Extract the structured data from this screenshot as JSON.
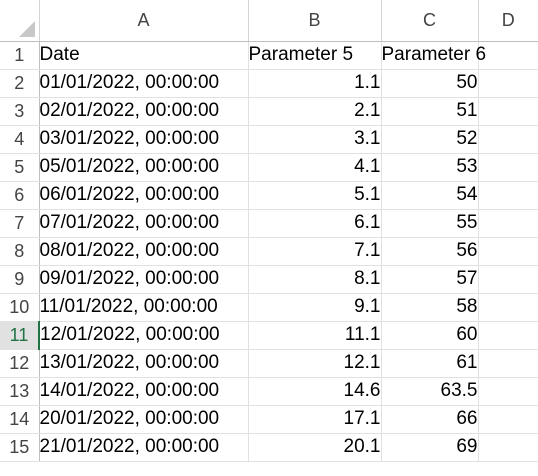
{
  "columns": [
    "A",
    "B",
    "C",
    "D"
  ],
  "header_row": {
    "row_number": "1",
    "cells": [
      "Date",
      "Parameter 5",
      "Parameter 6",
      ""
    ]
  },
  "active_row": "11",
  "rows": [
    {
      "n": "2",
      "date": "01/01/2022, 00:00:00",
      "p5": "1.1",
      "p6": "50"
    },
    {
      "n": "3",
      "date": "02/01/2022, 00:00:00",
      "p5": "2.1",
      "p6": "51"
    },
    {
      "n": "4",
      "date": "03/01/2022, 00:00:00",
      "p5": "3.1",
      "p6": "52"
    },
    {
      "n": "5",
      "date": "05/01/2022, 00:00:00",
      "p5": "4.1",
      "p6": "53"
    },
    {
      "n": "6",
      "date": "06/01/2022, 00:00:00",
      "p5": "5.1",
      "p6": "54"
    },
    {
      "n": "7",
      "date": "07/01/2022, 00:00:00",
      "p5": "6.1",
      "p6": "55"
    },
    {
      "n": "8",
      "date": "08/01/2022, 00:00:00",
      "p5": "7.1",
      "p6": "56"
    },
    {
      "n": "9",
      "date": "09/01/2022, 00:00:00",
      "p5": "8.1",
      "p6": "57"
    },
    {
      "n": "10",
      "date": "11/01/2022, 00:00:00",
      "p5": "9.1",
      "p6": "58"
    },
    {
      "n": "11",
      "date": "12/01/2022, 00:00:00",
      "p5": "11.1",
      "p6": "60"
    },
    {
      "n": "12",
      "date": "13/01/2022, 00:00:00",
      "p5": "12.1",
      "p6": "61"
    },
    {
      "n": "13",
      "date": "14/01/2022, 00:00:00",
      "p5": "14.6",
      "p6": "63.5"
    },
    {
      "n": "14",
      "date": "20/01/2022, 00:00:00",
      "p5": "17.1",
      "p6": "66"
    },
    {
      "n": "15",
      "date": "21/01/2022, 00:00:00",
      "p5": "20.1",
      "p6": "69"
    }
  ],
  "colors": {
    "accent": "#217346",
    "gridline": "#e1e1e1",
    "header_text": "#444444"
  }
}
